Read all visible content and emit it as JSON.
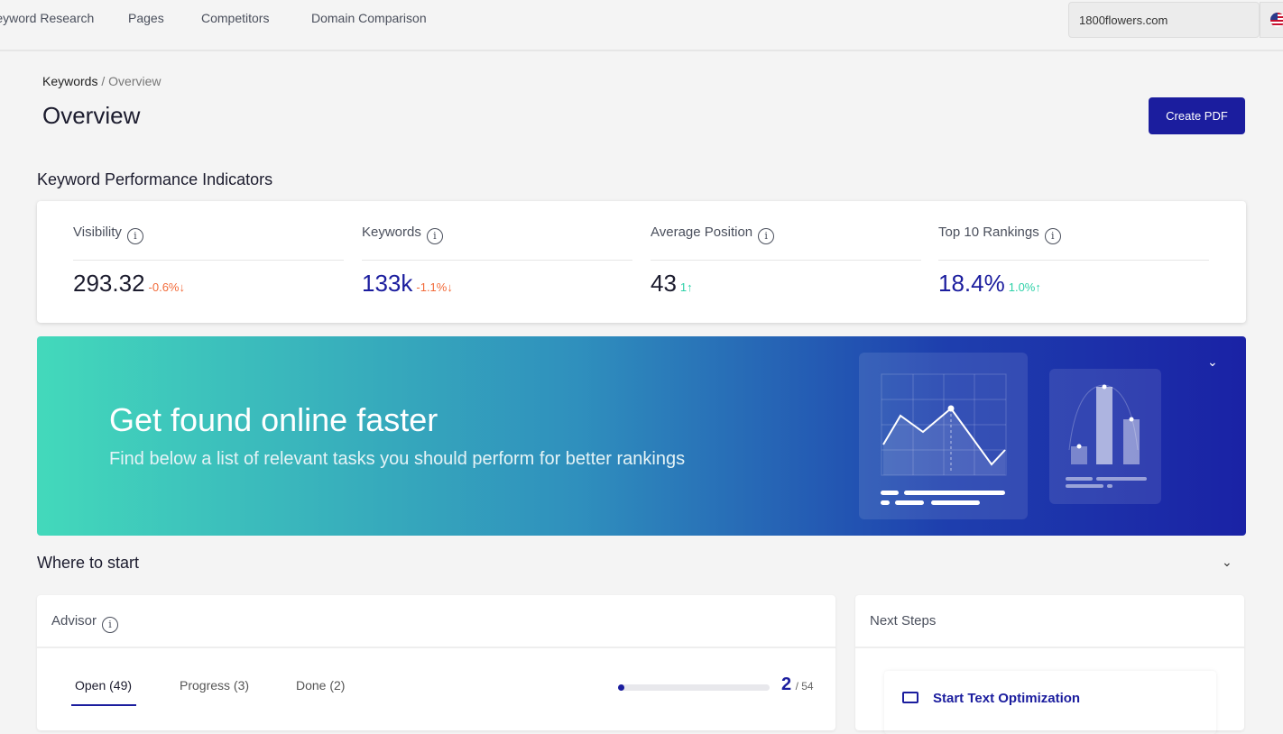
{
  "nav": {
    "items": [
      "Keyword Research",
      "Pages",
      "Competitors",
      "Domain Comparison"
    ],
    "domain": "1800flowers.com"
  },
  "breadcrumb": {
    "parent": "Keywords",
    "sep": "/",
    "current": "Overview"
  },
  "page": {
    "title": "Overview",
    "create_pdf": "Create PDF"
  },
  "kpi": {
    "title": "Keyword Performance Indicators",
    "items": [
      {
        "label": "Visibility",
        "value": "293.32",
        "change": "-0.6%",
        "dir": "↓",
        "color": "#1c1c2e",
        "chg_color": "#f26b3a"
      },
      {
        "label": "Keywords",
        "value": "133k",
        "change": "-1.1%",
        "dir": "↓",
        "color": "#1b1d9e",
        "chg_color": "#f26b3a"
      },
      {
        "label": "Average Position",
        "value": "43",
        "change": "1",
        "dir": "↑",
        "color": "#1c1c2e",
        "chg_color": "#2ed1a8"
      },
      {
        "label": "Top 10 Rankings",
        "value": "18.4%",
        "change": "1.0%",
        "dir": "↑",
        "color": "#1b1d9e",
        "chg_color": "#2ed1a8"
      }
    ]
  },
  "banner": {
    "title": "Get found online faster",
    "subtitle": "Find below a list of relevant tasks you should perform for better rankings"
  },
  "where": {
    "title": "Where to start"
  },
  "advisor": {
    "title": "Advisor",
    "tabs": [
      "Open (49)",
      "Progress (3)",
      "Done (2)"
    ],
    "done": "2",
    "total": "/ 54",
    "progress_fraction": 0.037
  },
  "next_steps": {
    "title": "Next Steps",
    "item": "Start Text Optimization"
  },
  "colors": {
    "accent": "#1b1d9e",
    "negative": "#f26b3a",
    "positive": "#2ed1a8"
  }
}
